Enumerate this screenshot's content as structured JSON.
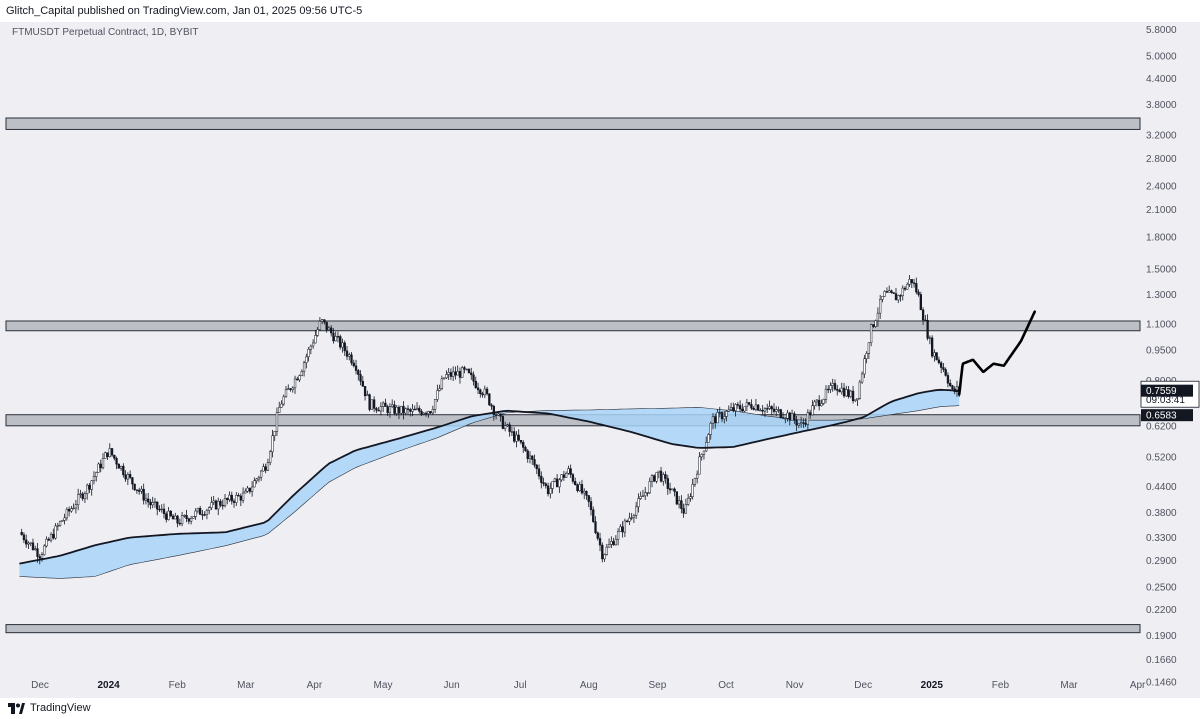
{
  "header": {
    "published": "Glitch_Capital published on TradingView.com, Jan 01, 2025 09:56 UTC-5"
  },
  "footer": {
    "brand": "TradingView"
  },
  "chart_data": {
    "type": "candlestick",
    "title": "FTMUSDT Perpetual Contract, 1D, BYBIT",
    "yscale": "log",
    "ylim": [
      0.13,
      6.0
    ],
    "y_ticks": [
      "5.8000",
      "5.0000",
      "4.4000",
      "3.8000",
      "3.2000",
      "2.8000",
      "2.4000",
      "2.1000",
      "1.8000",
      "1.5000",
      "1.3000",
      "1.1000",
      "0.9500",
      "0.8000",
      "0.6200",
      "0.5200",
      "0.4400",
      "0.3800",
      "0.3300",
      "0.2900",
      "0.2500",
      "0.2200",
      "0.1900",
      "0.1660",
      "0.1460"
    ],
    "x_ticks": [
      "Dec",
      "2024",
      "Feb",
      "Mar",
      "Apr",
      "May",
      "Jun",
      "Jul",
      "Aug",
      "Sep",
      "Oct",
      "Nov",
      "Dec",
      "2025",
      "Feb",
      "Mar",
      "Apr"
    ],
    "x_tick_bold": [
      "2024",
      "2025"
    ],
    "last_price": "0.7621",
    "countdown": "09:03:41",
    "price_labels": [
      "0.7559",
      "0.6583"
    ],
    "zones": [
      {
        "low": 3.3,
        "high": 3.52
      },
      {
        "low": 1.06,
        "high": 1.12
      },
      {
        "low": 0.62,
        "high": 0.66
      },
      {
        "low": 0.193,
        "high": 0.202
      }
    ],
    "price_path": [
      [
        -0.3,
        0.34
      ],
      [
        0.0,
        0.3
      ],
      [
        0.3,
        0.36
      ],
      [
        0.7,
        0.44
      ],
      [
        1.0,
        0.54
      ],
      [
        1.3,
        0.46
      ],
      [
        1.6,
        0.4
      ],
      [
        2.0,
        0.36
      ],
      [
        2.3,
        0.38
      ],
      [
        2.6,
        0.4
      ],
      [
        3.0,
        0.42
      ],
      [
        3.3,
        0.5
      ],
      [
        3.5,
        0.7
      ],
      [
        3.8,
        0.85
      ],
      [
        4.1,
        1.12
      ],
      [
        4.3,
        1.02
      ],
      [
        4.6,
        0.88
      ],
      [
        4.8,
        0.7
      ],
      [
        5.1,
        0.68
      ],
      [
        5.4,
        0.67
      ],
      [
        5.7,
        0.68
      ],
      [
        5.9,
        0.82
      ],
      [
        6.2,
        0.84
      ],
      [
        6.5,
        0.74
      ],
      [
        6.7,
        0.64
      ],
      [
        7.0,
        0.56
      ],
      [
        7.2,
        0.5
      ],
      [
        7.4,
        0.43
      ],
      [
        7.7,
        0.48
      ],
      [
        8.0,
        0.4
      ],
      [
        8.2,
        0.3
      ],
      [
        8.5,
        0.35
      ],
      [
        8.8,
        0.42
      ],
      [
        9.0,
        0.48
      ],
      [
        9.2,
        0.43
      ],
      [
        9.4,
        0.38
      ],
      [
        9.6,
        0.5
      ],
      [
        9.8,
        0.64
      ],
      [
        10.1,
        0.68
      ],
      [
        10.4,
        0.7
      ],
      [
        10.6,
        0.68
      ],
      [
        10.9,
        0.66
      ],
      [
        11.1,
        0.62
      ],
      [
        11.3,
        0.7
      ],
      [
        11.6,
        0.78
      ],
      [
        11.9,
        0.72
      ],
      [
        12.1,
        1.05
      ],
      [
        12.3,
        1.3
      ],
      [
        12.5,
        1.28
      ],
      [
        12.7,
        1.42
      ],
      [
        12.8,
        1.3
      ],
      [
        13.0,
        0.95
      ],
      [
        13.2,
        0.84
      ],
      [
        13.3,
        0.75
      ],
      [
        13.4,
        0.7621
      ]
    ],
    "projection": [
      [
        13.4,
        0.74
      ],
      [
        13.45,
        0.88
      ],
      [
        13.6,
        0.9
      ],
      [
        13.75,
        0.84
      ],
      [
        13.9,
        0.88
      ],
      [
        14.05,
        0.87
      ],
      [
        14.3,
        1.0
      ],
      [
        14.5,
        1.18
      ]
    ],
    "ma_line": [
      [
        -0.3,
        0.285
      ],
      [
        0.3,
        0.298
      ],
      [
        0.8,
        0.316
      ],
      [
        1.3,
        0.33
      ],
      [
        2.0,
        0.337
      ],
      [
        2.7,
        0.34
      ],
      [
        3.3,
        0.36
      ],
      [
        3.7,
        0.42
      ],
      [
        4.2,
        0.5
      ],
      [
        4.6,
        0.54
      ],
      [
        5.2,
        0.575
      ],
      [
        5.8,
        0.615
      ],
      [
        6.3,
        0.655
      ],
      [
        6.8,
        0.675
      ],
      [
        7.4,
        0.665
      ],
      [
        8.0,
        0.635
      ],
      [
        8.6,
        0.6
      ],
      [
        9.2,
        0.56
      ],
      [
        9.6,
        0.547
      ],
      [
        10.1,
        0.55
      ],
      [
        10.6,
        0.575
      ],
      [
        11.1,
        0.6
      ],
      [
        11.6,
        0.625
      ],
      [
        12.0,
        0.65
      ],
      [
        12.4,
        0.71
      ],
      [
        12.8,
        0.745
      ],
      [
        13.1,
        0.76
      ],
      [
        13.4,
        0.7559
      ]
    ],
    "ma_band_lower": [
      [
        -0.3,
        0.265
      ],
      [
        0.3,
        0.262
      ],
      [
        0.8,
        0.265
      ],
      [
        1.3,
        0.283
      ],
      [
        2.0,
        0.298
      ],
      [
        2.7,
        0.315
      ],
      [
        3.3,
        0.335
      ],
      [
        3.7,
        0.38
      ],
      [
        4.2,
        0.45
      ],
      [
        4.6,
        0.49
      ],
      [
        5.2,
        0.535
      ],
      [
        5.8,
        0.58
      ],
      [
        6.3,
        0.63
      ],
      [
        6.8,
        0.668
      ],
      [
        7.4,
        0.676
      ],
      [
        8.0,
        0.678
      ],
      [
        8.6,
        0.682
      ],
      [
        9.2,
        0.685
      ],
      [
        9.6,
        0.688
      ],
      [
        10.1,
        0.675
      ],
      [
        10.6,
        0.655
      ],
      [
        11.1,
        0.64
      ],
      [
        11.6,
        0.64
      ],
      [
        12.0,
        0.645
      ],
      [
        12.4,
        0.66
      ],
      [
        12.8,
        0.675
      ],
      [
        13.1,
        0.69
      ],
      [
        13.4,
        0.695
      ]
    ]
  }
}
